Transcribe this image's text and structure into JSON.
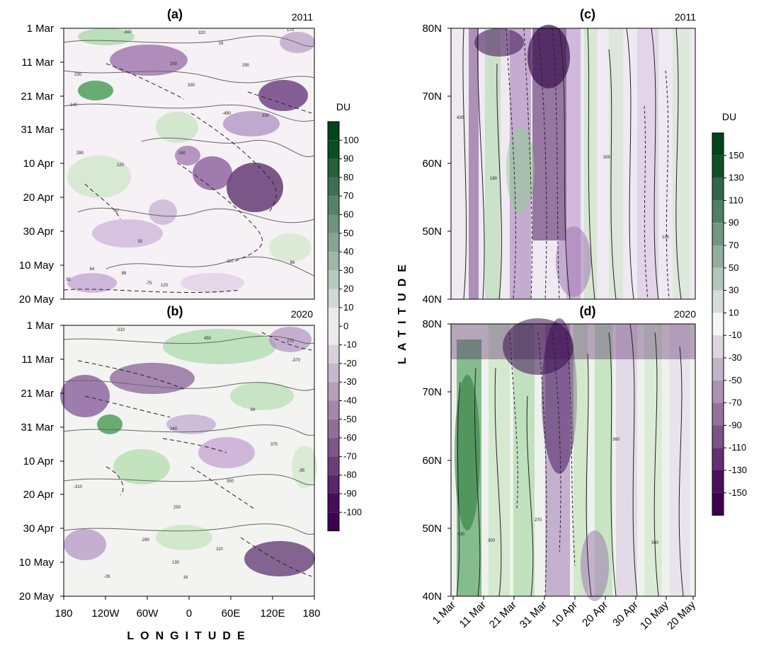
{
  "chart_data": [
    {
      "panel": "(a)",
      "year": "2011",
      "type": "heatmap",
      "xlabel": "LONGITUDE",
      "ylabel": "",
      "x_ticks": [
        "180",
        "120W",
        "60W",
        "0",
        "60E",
        "120E",
        "180"
      ],
      "y_ticks": [
        "1 Mar",
        "11 Mar",
        "21 Mar",
        "31 Mar",
        "10 Apr",
        "20 Apr",
        "30 Apr",
        "10 May",
        "20 May"
      ],
      "colorbar_unit": "DU",
      "colorbar_ticks": [
        100,
        90,
        80,
        70,
        60,
        50,
        40,
        30,
        20,
        10,
        0,
        -10,
        -20,
        -30,
        -40,
        -50,
        -60,
        -70,
        -80,
        -90,
        -100
      ],
      "contour_labels": [
        "320",
        "16",
        "-380",
        "170",
        "200",
        "290",
        "330",
        "230",
        "140",
        "330",
        "-490",
        "160",
        "280",
        "220",
        "87",
        "92",
        "88",
        "64",
        "81",
        "110",
        "120",
        "66",
        "-75"
      ]
    },
    {
      "panel": "(b)",
      "year": "2020",
      "type": "heatmap",
      "xlabel": "LONGITUDE",
      "ylabel": "",
      "x_ticks": [
        "180",
        "120W",
        "60W",
        "0",
        "60E",
        "120E",
        "180"
      ],
      "y_ticks": [
        "1 Mar",
        "11 Mar",
        "21 Mar",
        "31 Mar",
        "10 Apr",
        "20 Apr",
        "30 Apr",
        "10 May",
        "20 May"
      ],
      "contour_labels": [
        "-310",
        "450",
        "270",
        "-370",
        "84",
        "240",
        "370",
        "-310",
        "350",
        "250",
        "-95",
        "-260",
        "110",
        "130",
        "-26",
        "16"
      ]
    },
    {
      "panel": "(c)",
      "year": "2011",
      "type": "heatmap",
      "xlabel": "",
      "ylabel": "LATITUDE",
      "y_ticks": [
        "80N",
        "70N",
        "60N",
        "50N",
        "40N"
      ],
      "colorbar_unit": "DU",
      "colorbar_ticks": [
        150,
        130,
        110,
        90,
        70,
        50,
        30,
        10,
        -10,
        -30,
        -50,
        -70,
        -90,
        -110,
        -130,
        -150
      ],
      "contour_labels": [
        "180",
        "300",
        "430",
        "130"
      ]
    },
    {
      "panel": "(d)",
      "year": "2020",
      "type": "heatmap",
      "xlabel": "",
      "ylabel": "LATITUDE",
      "x_ticks": [
        "1 Mar",
        "11 Mar",
        "21 Mar",
        "31 Mar",
        "10 Apr",
        "20 Apr",
        "30 Apr",
        "10 May",
        "20 May"
      ],
      "y_ticks": [
        "80N",
        "70N",
        "60N",
        "50N",
        "40N"
      ],
      "contour_labels": [
        "360",
        "270",
        "430",
        "300",
        "340"
      ]
    }
  ]
}
